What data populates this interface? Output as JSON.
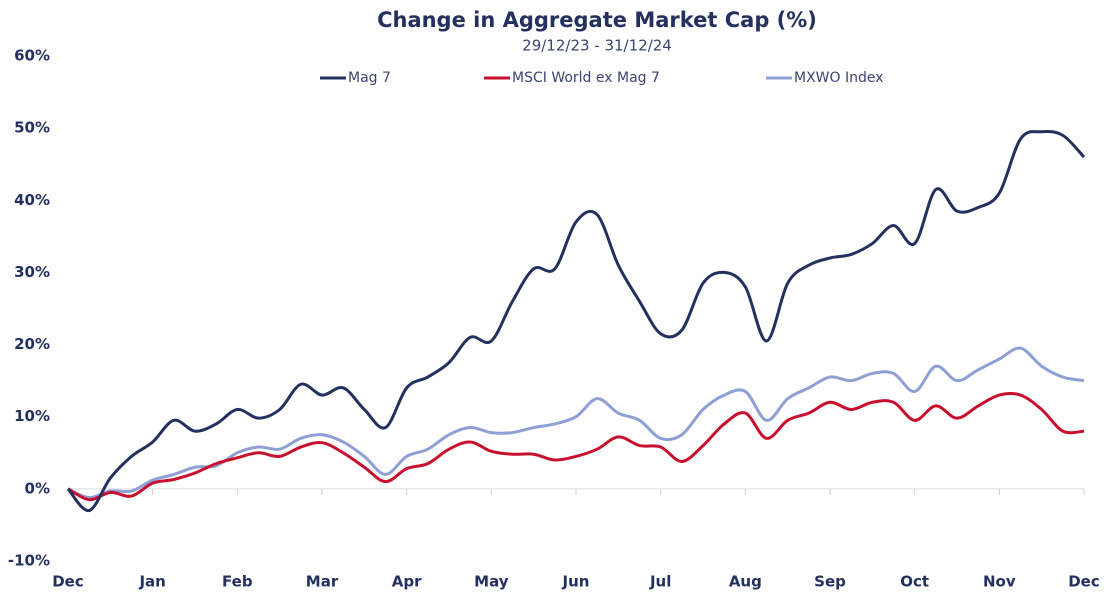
{
  "chart_data": {
    "type": "line",
    "title": "Change in Aggregate Market Cap (%)",
    "subtitle": "29/12/23 - 31/12/24",
    "categories": [
      "Dec",
      null,
      null,
      null,
      "Jan",
      null,
      null,
      null,
      "Feb",
      null,
      null,
      null,
      "Mar",
      null,
      null,
      null,
      "Apr",
      null,
      null,
      null,
      "May",
      null,
      null,
      null,
      "Jun",
      null,
      null,
      null,
      "Jul",
      null,
      null,
      null,
      "Aug",
      null,
      null,
      null,
      "Sep",
      null,
      null,
      null,
      "Oct",
      null,
      null,
      null,
      "Nov",
      null,
      null,
      null,
      "Dec"
    ],
    "series": [
      {
        "name": "Mag 7",
        "color": "#24305e",
        "values": [
          0,
          -3,
          1.5,
          4.5,
          6.5,
          9.5,
          8,
          9,
          11,
          9.8,
          11,
          14.5,
          13,
          14,
          11,
          8.5,
          14,
          15.5,
          17.5,
          21,
          20.5,
          26,
          30.5,
          30.5,
          37,
          38,
          31,
          26,
          21.5,
          22,
          28.5,
          30,
          28,
          20.5,
          28.5,
          31,
          32,
          32.5,
          34,
          36.5,
          34,
          41.5,
          38.5,
          39,
          41,
          48.5,
          49.5,
          49,
          46
        ]
      },
      {
        "name": "MSCI World ex Mag 7",
        "color": "#c8102e",
        "values": [
          0,
          -1.5,
          -0.5,
          -1,
          0.8,
          1.3,
          2.2,
          3.5,
          4.3,
          5,
          4.5,
          5.8,
          6.4,
          5,
          3,
          1,
          2.8,
          3.5,
          5.5,
          6.5,
          5.2,
          4.8,
          4.8,
          4,
          4.5,
          5.5,
          7.2,
          6,
          5.8,
          3.8,
          6,
          9,
          10.5,
          7,
          9.5,
          10.5,
          12,
          11,
          12,
          12,
          9.5,
          11.5,
          9.8,
          11.5,
          13,
          13,
          11,
          8,
          8
        ]
      },
      {
        "name": "MXWO Index",
        "color": "#8e9fd4",
        "values": [
          0,
          -1.2,
          -0.3,
          -0.3,
          1.2,
          2,
          3,
          3.2,
          5,
          5.8,
          5.5,
          7,
          7.5,
          6.5,
          4.5,
          2,
          4.5,
          5.5,
          7.5,
          8.5,
          7.8,
          7.8,
          8.5,
          9,
          10,
          12.5,
          10.5,
          9.5,
          7,
          7.5,
          11,
          13,
          13.5,
          9.5,
          12.5,
          14,
          15.5,
          15,
          16,
          16,
          13.5,
          17,
          15,
          16.5,
          18,
          19.5,
          17,
          15.5,
          15
        ]
      }
    ],
    "ylim": [
      -10,
      60
    ],
    "yticks": [
      {
        "value": -10,
        "label": "-10%"
      },
      {
        "value": 0,
        "label": "0%"
      },
      {
        "value": 10,
        "label": "10%"
      },
      {
        "value": 20,
        "label": "20%"
      },
      {
        "value": 30,
        "label": "30%"
      },
      {
        "value": 40,
        "label": "40%"
      },
      {
        "value": 50,
        "label": "50%"
      },
      {
        "value": 60,
        "label": "60%"
      }
    ],
    "legend": "top"
  }
}
